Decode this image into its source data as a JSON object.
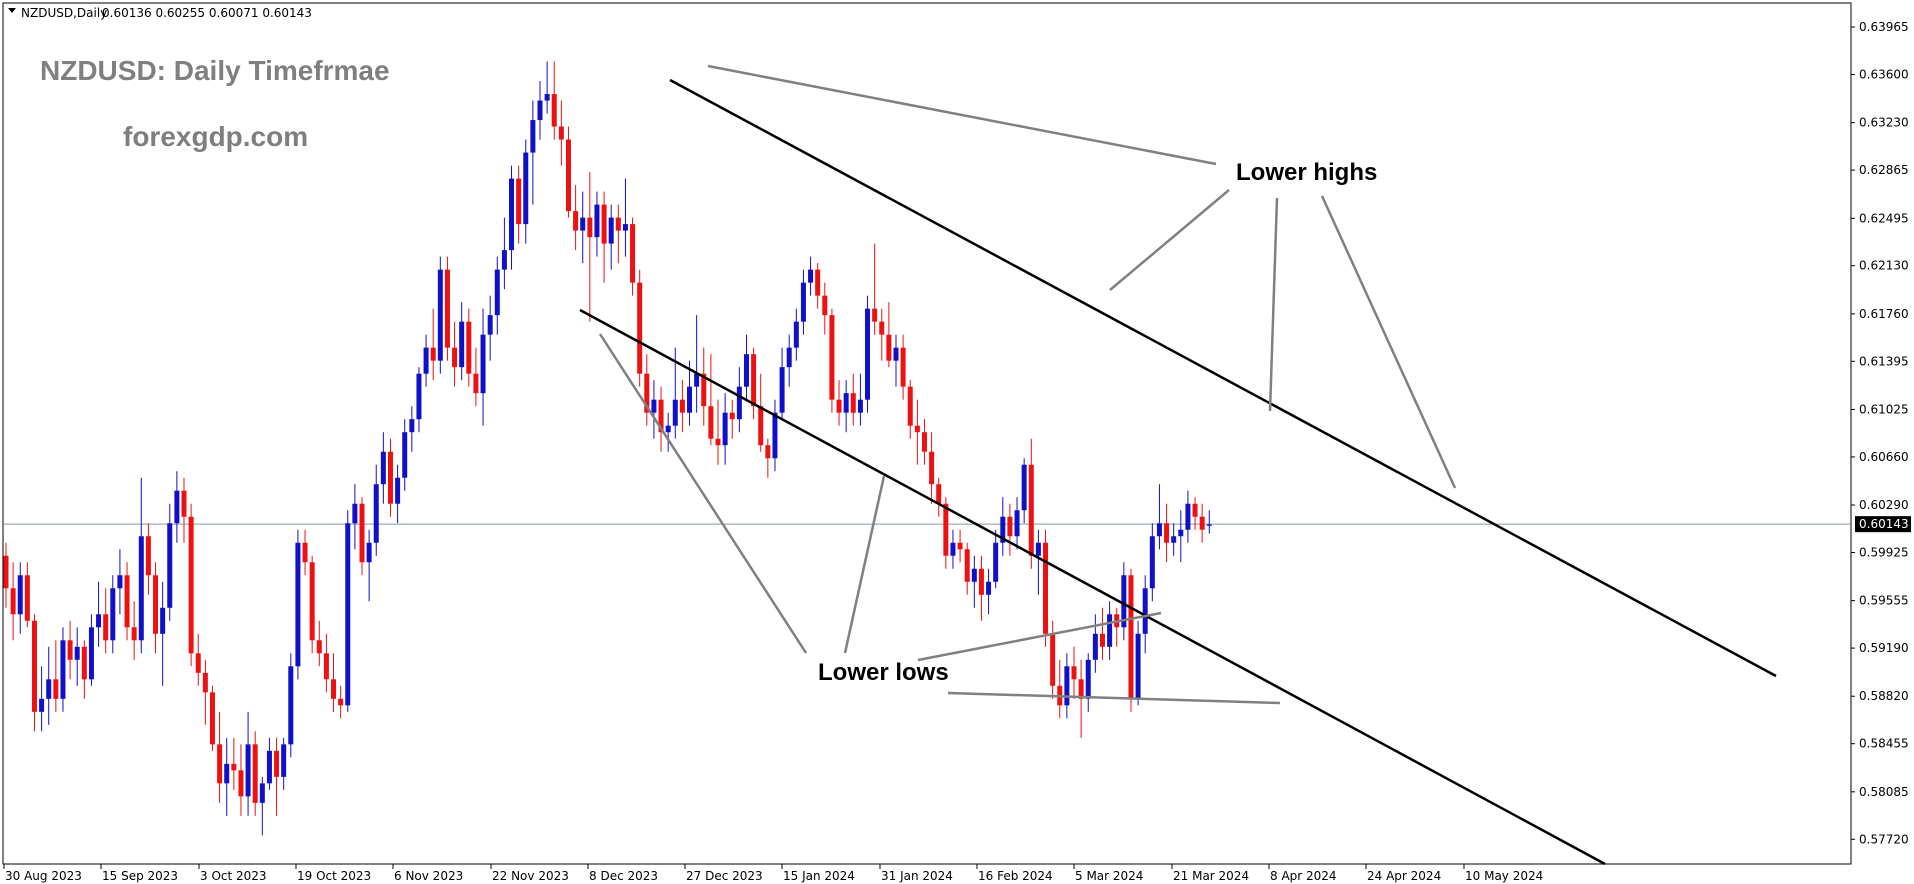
{
  "header": {
    "symbol": "NZDUSD,Daily",
    "ohlc": "0.60136 0.60255 0.60071 0.60143"
  },
  "watermark": {
    "title": "NZDUSD: Daily Timefrmae",
    "site": "forexgdp.com"
  },
  "annotations": {
    "lower_highs": "Lower highs",
    "lower_lows": "Lower lows"
  },
  "colors": {
    "bull": "#1010c8",
    "bear": "#ee1111",
    "channel": "#000000",
    "pointer": "#808080",
    "current_line": "#7f8fa0",
    "grid": "#000000"
  },
  "chart_data": {
    "type": "candlestick",
    "title": "NZDUSD: Daily Timefrmae",
    "price_axis": {
      "ticks": [
        "0.63965",
        "0.63600",
        "0.63230",
        "0.62865",
        "0.62495",
        "0.62130",
        "0.61760",
        "0.61395",
        "0.61025",
        "0.60660",
        "0.60290",
        "0.59925",
        "0.59555",
        "0.59190",
        "0.58820",
        "0.58455",
        "0.58085",
        "0.57720"
      ],
      "current_price": "0.60143",
      "ylim": [
        0.5753,
        0.6415
      ]
    },
    "time_axis": {
      "ticks": [
        "30 Aug 2023",
        "15 Sep 2023",
        "3 Oct 2023",
        "19 Oct 2023",
        "6 Nov 2023",
        "22 Nov 2023",
        "8 Dec 2023",
        "27 Dec 2023",
        "15 Jan 2024",
        "31 Jan 2024",
        "16 Feb 2024",
        "5 Mar 2024",
        "21 Mar 2024",
        "8 Apr 2024",
        "24 Apr 2024",
        "10 May 2024"
      ]
    },
    "candles": [
      [
        0.599,
        0.6,
        0.595,
        0.5965
      ],
      [
        0.5965,
        0.5985,
        0.5925,
        0.5945
      ],
      [
        0.5945,
        0.5985,
        0.593,
        0.5975
      ],
      [
        0.5975,
        0.5985,
        0.5935,
        0.594
      ],
      [
        0.594,
        0.5945,
        0.5855,
        0.587
      ],
      [
        0.587,
        0.5905,
        0.5855,
        0.588
      ],
      [
        0.588,
        0.592,
        0.586,
        0.5895
      ],
      [
        0.5895,
        0.5925,
        0.587,
        0.588
      ],
      [
        0.588,
        0.5935,
        0.587,
        0.5925
      ],
      [
        0.5925,
        0.594,
        0.5895,
        0.591
      ],
      [
        0.591,
        0.5935,
        0.589,
        0.592
      ],
      [
        0.592,
        0.5925,
        0.588,
        0.5895
      ],
      [
        0.5895,
        0.5945,
        0.589,
        0.5935
      ],
      [
        0.5935,
        0.597,
        0.592,
        0.5945
      ],
      [
        0.5945,
        0.5965,
        0.5915,
        0.5925
      ],
      [
        0.5925,
        0.5975,
        0.5915,
        0.5965
      ],
      [
        0.5965,
        0.5995,
        0.5945,
        0.5975
      ],
      [
        0.5975,
        0.5985,
        0.5925,
        0.5935
      ],
      [
        0.5935,
        0.5955,
        0.591,
        0.5925
      ],
      [
        0.5925,
        0.605,
        0.5915,
        0.6005
      ],
      [
        0.6005,
        0.6015,
        0.596,
        0.5975
      ],
      [
        0.5975,
        0.5985,
        0.5915,
        0.593
      ],
      [
        0.593,
        0.597,
        0.589,
        0.595
      ],
      [
        0.595,
        0.603,
        0.594,
        0.6015
      ],
      [
        0.6015,
        0.6055,
        0.6,
        0.604
      ],
      [
        0.604,
        0.605,
        0.6,
        0.602
      ],
      [
        0.602,
        0.603,
        0.5905,
        0.5915
      ],
      [
        0.5915,
        0.593,
        0.589,
        0.59
      ],
      [
        0.59,
        0.591,
        0.586,
        0.5885
      ],
      [
        0.5885,
        0.589,
        0.584,
        0.5845
      ],
      [
        0.5845,
        0.587,
        0.58,
        0.5815
      ],
      [
        0.5815,
        0.585,
        0.579,
        0.583
      ],
      [
        0.583,
        0.585,
        0.581,
        0.5825
      ],
      [
        0.5825,
        0.5845,
        0.579,
        0.5805
      ],
      [
        0.5805,
        0.587,
        0.579,
        0.5845
      ],
      [
        0.5845,
        0.5855,
        0.579,
        0.58
      ],
      [
        0.58,
        0.582,
        0.5775,
        0.5815
      ],
      [
        0.5815,
        0.585,
        0.581,
        0.584
      ],
      [
        0.584,
        0.585,
        0.579,
        0.582
      ],
      [
        0.582,
        0.585,
        0.581,
        0.5845
      ],
      [
        0.5845,
        0.5915,
        0.5835,
        0.5905
      ],
      [
        0.5905,
        0.601,
        0.5895,
        0.6
      ],
      [
        0.6,
        0.601,
        0.5975,
        0.5985
      ],
      [
        0.5985,
        0.599,
        0.5915,
        0.5925
      ],
      [
        0.5925,
        0.594,
        0.5905,
        0.5915
      ],
      [
        0.5915,
        0.593,
        0.5885,
        0.5895
      ],
      [
        0.5895,
        0.5915,
        0.587,
        0.588
      ],
      [
        0.588,
        0.589,
        0.5865,
        0.5875
      ],
      [
        0.5875,
        0.6025,
        0.587,
        0.6015
      ],
      [
        0.6015,
        0.6045,
        0.5995,
        0.603
      ],
      [
        0.603,
        0.6035,
        0.5975,
        0.5985
      ],
      [
        0.5985,
        0.601,
        0.5955,
        0.6
      ],
      [
        0.6,
        0.606,
        0.599,
        0.6045
      ],
      [
        0.6045,
        0.6085,
        0.603,
        0.607
      ],
      [
        0.607,
        0.608,
        0.602,
        0.603
      ],
      [
        0.603,
        0.606,
        0.6015,
        0.605
      ],
      [
        0.605,
        0.6095,
        0.604,
        0.6085
      ],
      [
        0.6085,
        0.6105,
        0.607,
        0.6095
      ],
      [
        0.6095,
        0.6135,
        0.6085,
        0.613
      ],
      [
        0.613,
        0.616,
        0.612,
        0.615
      ],
      [
        0.615,
        0.618,
        0.6125,
        0.614
      ],
      [
        0.614,
        0.622,
        0.613,
        0.621
      ],
      [
        0.621,
        0.622,
        0.614,
        0.615
      ],
      [
        0.615,
        0.617,
        0.612,
        0.6135
      ],
      [
        0.6135,
        0.6185,
        0.6125,
        0.617
      ],
      [
        0.617,
        0.618,
        0.612,
        0.613
      ],
      [
        0.613,
        0.615,
        0.6105,
        0.6115
      ],
      [
        0.6115,
        0.618,
        0.609,
        0.616
      ],
      [
        0.616,
        0.619,
        0.614,
        0.6175
      ],
      [
        0.6175,
        0.622,
        0.616,
        0.621
      ],
      [
        0.621,
        0.625,
        0.6195,
        0.6225
      ],
      [
        0.6225,
        0.629,
        0.621,
        0.628
      ],
      [
        0.628,
        0.629,
        0.623,
        0.6245
      ],
      [
        0.6245,
        0.631,
        0.623,
        0.63
      ],
      [
        0.63,
        0.634,
        0.626,
        0.6325
      ],
      [
        0.6325,
        0.6355,
        0.631,
        0.634
      ],
      [
        0.634,
        0.637,
        0.633,
        0.6345
      ],
      [
        0.6345,
        0.637,
        0.631,
        0.632
      ],
      [
        0.632,
        0.634,
        0.629,
        0.631
      ],
      [
        0.631,
        0.632,
        0.625,
        0.6255
      ],
      [
        0.6255,
        0.6275,
        0.6225,
        0.624
      ],
      [
        0.624,
        0.627,
        0.6215,
        0.625
      ],
      [
        0.625,
        0.6285,
        0.617,
        0.6235
      ],
      [
        0.6235,
        0.627,
        0.622,
        0.626
      ],
      [
        0.626,
        0.627,
        0.62,
        0.623
      ],
      [
        0.623,
        0.626,
        0.621,
        0.625
      ],
      [
        0.625,
        0.626,
        0.6215,
        0.624
      ],
      [
        0.624,
        0.628,
        0.622,
        0.6245
      ],
      [
        0.6245,
        0.625,
        0.619,
        0.62
      ],
      [
        0.62,
        0.621,
        0.612,
        0.613
      ],
      [
        0.613,
        0.6145,
        0.609,
        0.61
      ],
      [
        0.61,
        0.6125,
        0.608,
        0.611
      ],
      [
        0.611,
        0.612,
        0.607,
        0.6085
      ],
      [
        0.6085,
        0.61,
        0.607,
        0.609
      ],
      [
        0.609,
        0.615,
        0.608,
        0.611
      ],
      [
        0.611,
        0.6125,
        0.6085,
        0.61
      ],
      [
        0.61,
        0.614,
        0.609,
        0.612
      ],
      [
        0.612,
        0.6175,
        0.61,
        0.613
      ],
      [
        0.613,
        0.615,
        0.609,
        0.6105
      ],
      [
        0.6105,
        0.6145,
        0.6075,
        0.608
      ],
      [
        0.608,
        0.611,
        0.606,
        0.6075
      ],
      [
        0.6075,
        0.6115,
        0.606,
        0.61
      ],
      [
        0.61,
        0.611,
        0.608,
        0.6095
      ],
      [
        0.6095,
        0.6135,
        0.6085,
        0.612
      ],
      [
        0.612,
        0.616,
        0.611,
        0.6145
      ],
      [
        0.6145,
        0.615,
        0.6095,
        0.6105
      ],
      [
        0.6105,
        0.613,
        0.607,
        0.6075
      ],
      [
        0.6075,
        0.608,
        0.605,
        0.6065
      ],
      [
        0.6065,
        0.611,
        0.6055,
        0.61
      ],
      [
        0.61,
        0.615,
        0.6095,
        0.6135
      ],
      [
        0.6135,
        0.616,
        0.612,
        0.615
      ],
      [
        0.615,
        0.618,
        0.614,
        0.617
      ],
      [
        0.617,
        0.621,
        0.616,
        0.62
      ],
      [
        0.62,
        0.622,
        0.619,
        0.621
      ],
      [
        0.621,
        0.6215,
        0.618,
        0.619
      ],
      [
        0.619,
        0.62,
        0.616,
        0.6175
      ],
      [
        0.6175,
        0.618,
        0.61,
        0.611
      ],
      [
        0.611,
        0.6125,
        0.609,
        0.61
      ],
      [
        0.61,
        0.6125,
        0.6085,
        0.6115
      ],
      [
        0.6115,
        0.613,
        0.609,
        0.61
      ],
      [
        0.61,
        0.613,
        0.609,
        0.611
      ],
      [
        0.611,
        0.619,
        0.61,
        0.618
      ],
      [
        0.618,
        0.623,
        0.616,
        0.617
      ],
      [
        0.617,
        0.618,
        0.614,
        0.616
      ],
      [
        0.616,
        0.6185,
        0.6135,
        0.614
      ],
      [
        0.614,
        0.616,
        0.612,
        0.615
      ],
      [
        0.615,
        0.616,
        0.611,
        0.612
      ],
      [
        0.612,
        0.6125,
        0.608,
        0.609
      ],
      [
        0.609,
        0.611,
        0.606,
        0.6085
      ],
      [
        0.6085,
        0.6095,
        0.606,
        0.607
      ],
      [
        0.607,
        0.6085,
        0.603,
        0.6045
      ],
      [
        0.6045,
        0.605,
        0.602,
        0.603
      ],
      [
        0.603,
        0.6035,
        0.598,
        0.599
      ],
      [
        0.599,
        0.601,
        0.598,
        0.6
      ],
      [
        0.6,
        0.601,
        0.5985,
        0.5995
      ],
      [
        0.5995,
        0.6,
        0.596,
        0.597
      ],
      [
        0.597,
        0.599,
        0.595,
        0.598
      ],
      [
        0.598,
        0.599,
        0.594,
        0.596
      ],
      [
        0.596,
        0.598,
        0.5945,
        0.597
      ],
      [
        0.597,
        0.601,
        0.5965,
        0.6
      ],
      [
        0.6,
        0.6035,
        0.599,
        0.602
      ],
      [
        0.602,
        0.603,
        0.599,
        0.6005
      ],
      [
        0.6005,
        0.6035,
        0.5995,
        0.6025
      ],
      [
        0.6025,
        0.6065,
        0.6015,
        0.606
      ],
      [
        0.606,
        0.608,
        0.598,
        0.599
      ],
      [
        0.599,
        0.601,
        0.596,
        0.6
      ],
      [
        0.6,
        0.601,
        0.592,
        0.593
      ],
      [
        0.593,
        0.594,
        0.588,
        0.589
      ],
      [
        0.589,
        0.591,
        0.5865,
        0.5875
      ],
      [
        0.5875,
        0.5915,
        0.5865,
        0.5905
      ],
      [
        0.5905,
        0.592,
        0.588,
        0.5895
      ],
      [
        0.5895,
        0.591,
        0.585,
        0.588
      ],
      [
        0.588,
        0.5915,
        0.587,
        0.591
      ],
      [
        0.591,
        0.5945,
        0.59,
        0.593
      ],
      [
        0.593,
        0.595,
        0.591,
        0.592
      ],
      [
        0.592,
        0.5955,
        0.591,
        0.5945
      ],
      [
        0.5945,
        0.595,
        0.592,
        0.5935
      ],
      [
        0.5935,
        0.5985,
        0.5925,
        0.5975
      ],
      [
        0.5975,
        0.598,
        0.587,
        0.588
      ],
      [
        0.588,
        0.594,
        0.5875,
        0.593
      ],
      [
        0.593,
        0.5975,
        0.5915,
        0.5965
      ],
      [
        0.5965,
        0.6015,
        0.5955,
        0.6005
      ],
      [
        0.6005,
        0.6045,
        0.5995,
        0.6015
      ],
      [
        0.6015,
        0.603,
        0.5985,
        0.6
      ],
      [
        0.6,
        0.6015,
        0.599,
        0.6005
      ],
      [
        0.6005,
        0.6025,
        0.5985,
        0.601
      ],
      [
        0.601,
        0.604,
        0.6,
        0.603
      ],
      [
        0.603,
        0.6035,
        0.601,
        0.602
      ],
      [
        0.602,
        0.603,
        0.6,
        0.601
      ],
      [
        0.6013,
        0.6025,
        0.6007,
        0.6014
      ]
    ]
  }
}
